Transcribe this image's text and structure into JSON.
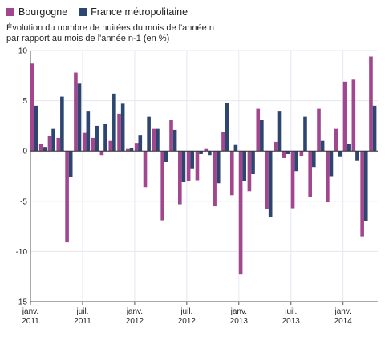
{
  "legend": [
    {
      "label": "Bourgogne",
      "color": "#a1468f"
    },
    {
      "label": "France métropolitaine",
      "color": "#2c4670"
    }
  ],
  "chart_data": {
    "type": "bar",
    "ylabel_lines": [
      "Évolution du nombre de nuitées du mois de l'année n",
      "par rapport au mois de l'année n-1 (en %)"
    ],
    "ylim": [
      -15,
      10
    ],
    "yticks": [
      10,
      5,
      0,
      -5,
      -10,
      -15
    ],
    "grid": true,
    "legend_position": "top-left",
    "x_tick_labels": [
      {
        "line1": "janv.",
        "line2": "2011",
        "index": 0
      },
      {
        "line1": "juil.",
        "line2": "2011",
        "index": 6
      },
      {
        "line1": "janv.",
        "line2": "2012",
        "index": 12
      },
      {
        "line1": "juil.",
        "line2": "2012",
        "index": 18
      },
      {
        "line1": "janv.",
        "line2": "2013",
        "index": 24
      },
      {
        "line1": "juil.",
        "line2": "2013",
        "index": 30
      },
      {
        "line1": "janv.",
        "line2": "2014",
        "index": 36
      }
    ],
    "series": [
      {
        "name": "Bourgogne",
        "color": "#a1468f",
        "values": [
          8.7,
          0.7,
          1.5,
          1.3,
          -9.1,
          7.8,
          1.8,
          1.3,
          -0.4,
          1.0,
          3.7,
          0.2,
          0.8,
          -3.6,
          2.2,
          -6.9,
          3.1,
          -5.3,
          -3.0,
          -2.9,
          0.2,
          -5.5,
          1.9,
          -4.4,
          -12.3,
          -4.0,
          4.2,
          -5.8,
          0.9,
          -0.7,
          -5.7,
          -0.5,
          -4.6,
          4.2,
          -5.1,
          2.2,
          6.9,
          7.1,
          -8.5,
          9.4
        ]
      },
      {
        "name": "France métropolitaine",
        "color": "#2c4670",
        "values": [
          4.5,
          0.4,
          2.2,
          5.4,
          -2.6,
          6.7,
          4.0,
          2.5,
          2.7,
          5.7,
          4.7,
          0.3,
          1.6,
          3.4,
          2.2,
          -1.1,
          2.1,
          -3.1,
          -1.8,
          -0.3,
          -0.4,
          -3.2,
          4.8,
          0.6,
          -3.0,
          -2.3,
          3.1,
          -6.6,
          4.0,
          -0.3,
          -2.0,
          3.4,
          -1.6,
          1.0,
          -2.5,
          -0.6,
          0.7,
          -1.0,
          -7.0,
          4.5
        ]
      }
    ]
  }
}
